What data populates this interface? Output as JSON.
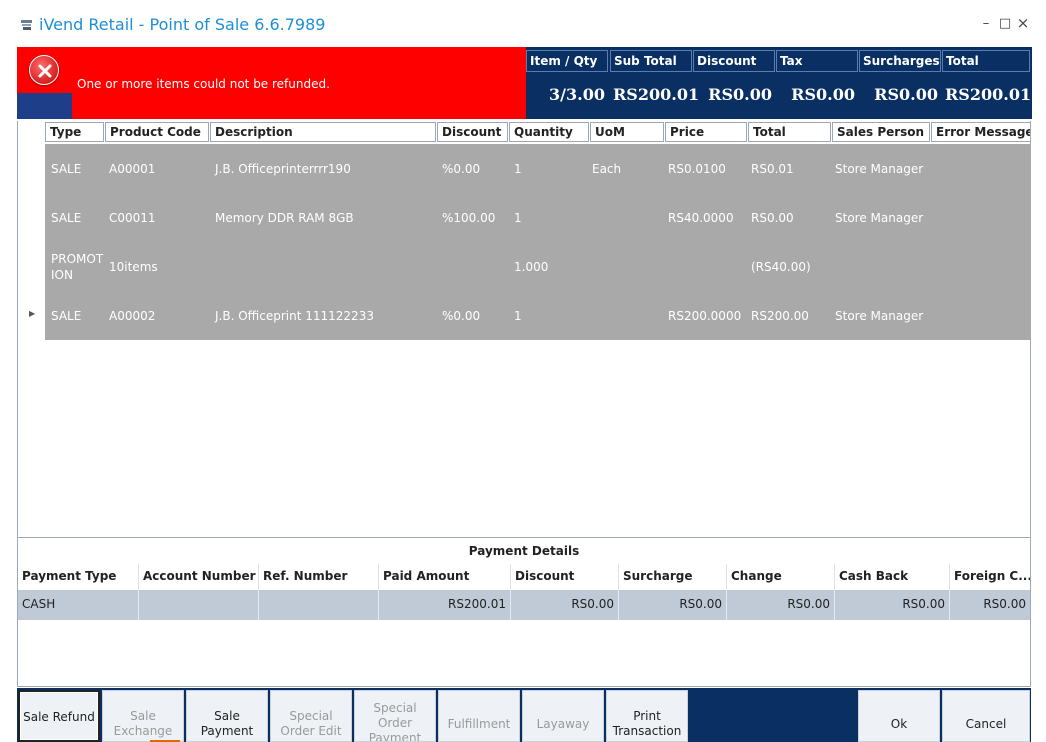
{
  "window": {
    "title": "iVend Retail - Point of Sale 6.6.7989",
    "minimize": "–",
    "maximize": "□",
    "close": "×"
  },
  "error": {
    "message": "One or more items could not be refunded."
  },
  "summary": {
    "columns": [
      {
        "label": "Item / Qty",
        "value": "3/3.00"
      },
      {
        "label": "Sub Total",
        "value": "RS200.01"
      },
      {
        "label": "Discount",
        "value": "RS0.00"
      },
      {
        "label": "Tax",
        "value": "RS0.00"
      },
      {
        "label": "Surcharges",
        "value": "RS0.00"
      },
      {
        "label": "Total",
        "value": "RS200.01"
      }
    ]
  },
  "grid": {
    "headers": [
      "Type",
      "Product Code",
      "Description",
      "Discount",
      "Quantity",
      "UoM",
      "Price",
      "Total",
      "Sales Person",
      "Error Message"
    ],
    "rows": [
      {
        "type": "SALE",
        "code": "A00001",
        "description": "J.B. Officeprinterrrr190",
        "discount": "%0.00",
        "quantity": "1",
        "uom": "Each",
        "price": "RS0.0100",
        "total": "RS0.01",
        "sales_person": "Store Manager",
        "error": ""
      },
      {
        "type": "SALE",
        "code": "C00011",
        "description": "Memory DDR RAM 8GB",
        "discount": "%100.00",
        "quantity": "1",
        "uom": "",
        "price": "RS40.0000",
        "total": "RS0.00",
        "sales_person": "Store Manager",
        "error": ""
      },
      {
        "type": "PROMOT ION",
        "type_line1": "PROMOT",
        "type_line2": "ION",
        "code": "10items",
        "description": "",
        "discount": "",
        "quantity": "1.000",
        "uom": "",
        "price": "",
        "total": "(RS40.00)",
        "sales_person": "",
        "error": ""
      },
      {
        "type": "SALE",
        "code": "A00002",
        "description": "J.B. Officeprint 111122233",
        "discount": "%0.00",
        "quantity": "1",
        "uom": "",
        "price": "RS200.0000",
        "total": "RS200.00",
        "sales_person": "Store Manager",
        "error": ""
      }
    ]
  },
  "payment": {
    "title": "Payment Details",
    "headers": [
      "Payment Type",
      "Account Number",
      "Ref. Number",
      "Paid Amount",
      "Discount",
      "Surcharge",
      "Change",
      "Cash Back",
      "Foreign C..."
    ],
    "rows": [
      {
        "payment_type": "CASH",
        "account_number": "",
        "ref_number": "",
        "paid_amount": "RS200.01",
        "discount": "RS0.00",
        "surcharge": "RS0.00",
        "change": "RS0.00",
        "cash_back": "RS0.00",
        "foreign": "RS0.00"
      }
    ]
  },
  "buttons": {
    "sale_refund": "Sale Refund",
    "sale_exchange": "Sale Exchange",
    "sale_payment": "Sale Payment",
    "special_order_edit": "Special Order Edit",
    "special_order_payment": "Special Order Payment",
    "fulfillment": "Fulfillment",
    "layaway": "Layaway",
    "print_transaction": "Print Transaction",
    "ok": "Ok",
    "cancel": "Cancel"
  },
  "colors": {
    "title_blue": "#1e8fd6",
    "error_red": "#ff0000",
    "summary_navy": "#0a2f63",
    "grid_row_gray": "#a9a9a9",
    "payment_row": "#bfcad6"
  }
}
